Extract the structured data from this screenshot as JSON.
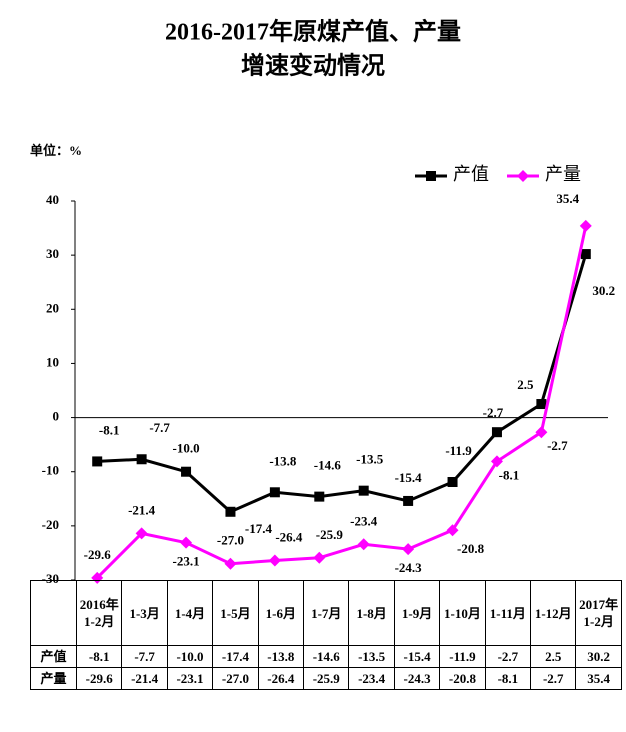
{
  "chart_data": {
    "type": "line",
    "title": [
      "2016-2017年原煤产值、产量",
      "增速变动情况"
    ],
    "unit_label": "单位：%",
    "categories": [
      "2016年1-2月",
      "1-3月",
      "1-4月",
      "1-5月",
      "1-6月",
      "1-7月",
      "1-8月",
      "1-9月",
      "1-10月",
      "1-11月",
      "1-12月",
      "2017年1-2月"
    ],
    "series": [
      {
        "name": "产值",
        "color": "#000000",
        "marker": "square",
        "values": [
          -8.1,
          -7.7,
          -10.0,
          -17.4,
          -13.8,
          -14.6,
          -13.5,
          -15.4,
          -11.9,
          -2.7,
          2.5,
          30.2
        ],
        "value_labels": [
          "-8.1",
          "-7.7",
          "-10.0",
          "-17.4",
          "-13.8",
          "-14.6",
          "-13.5",
          "-15.4",
          "-11.9",
          "-2.7",
          "2.5",
          "30.2"
        ]
      },
      {
        "name": "产量",
        "color": "#ff00ff",
        "marker": "diamond",
        "values": [
          -29.6,
          -21.4,
          -23.1,
          -27.0,
          -26.4,
          -25.9,
          -23.4,
          -24.3,
          -20.8,
          -8.1,
          -2.7,
          35.4
        ],
        "value_labels": [
          "-29.6",
          "-21.4",
          "-23.1",
          "-27.0",
          "-26.4",
          "-25.9",
          "-23.4",
          "-24.3",
          "-20.8",
          "-8.1",
          "-2.7",
          "35.4"
        ]
      }
    ],
    "ylim": [
      -30,
      40
    ],
    "yticks": [
      -30,
      -20,
      -10,
      0,
      10,
      20,
      30,
      40
    ],
    "grid": false,
    "legend": "top-right"
  }
}
